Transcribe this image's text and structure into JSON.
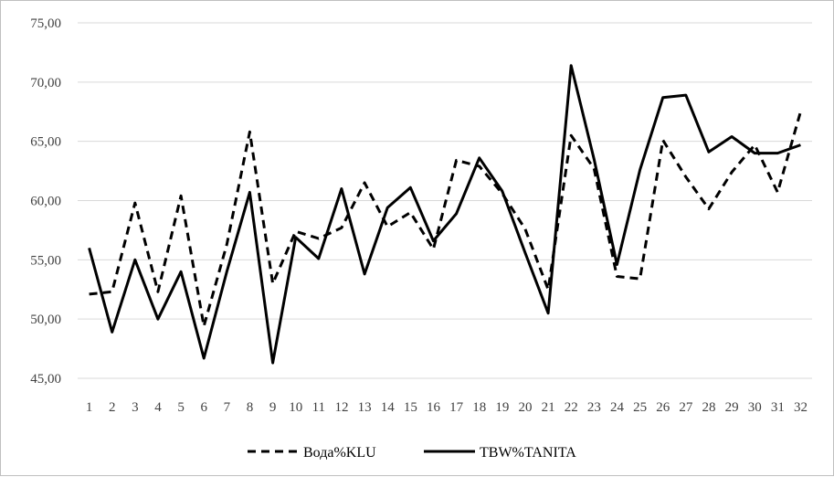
{
  "chart_data": {
    "type": "line",
    "title": "",
    "xlabel": "",
    "ylabel": "",
    "ylim": [
      45,
      75
    ],
    "y_ticks": [
      "45,00",
      "50,00",
      "55,00",
      "60,00",
      "65,00",
      "70,00",
      "75,00"
    ],
    "y_tick_values": [
      45,
      50,
      55,
      60,
      65,
      70,
      75
    ],
    "categories": [
      "1",
      "2",
      "3",
      "4",
      "5",
      "6",
      "7",
      "8",
      "9",
      "10",
      "11",
      "12",
      "13",
      "14",
      "15",
      "16",
      "17",
      "18",
      "19",
      "20",
      "21",
      "22",
      "23",
      "24",
      "25",
      "26",
      "27",
      "28",
      "29",
      "30",
      "31",
      "32"
    ],
    "grid": true,
    "legend_position": "bottom",
    "series": [
      {
        "name": "Вода%KLU",
        "style": "dashed",
        "color": "#000000",
        "values": [
          52.1,
          52.3,
          59.8,
          52.3,
          60.4,
          49.4,
          56.3,
          65.8,
          53.0,
          57.4,
          56.8,
          57.7,
          61.5,
          57.8,
          59.0,
          55.9,
          63.4,
          62.9,
          60.6,
          57.6,
          52.5,
          65.5,
          62.7,
          53.6,
          53.4,
          65.1,
          62.0,
          59.3,
          62.4,
          64.7,
          60.7,
          67.5
        ]
      },
      {
        "name": "TBW%TANITA",
        "style": "solid",
        "color": "#000000",
        "values": [
          56.0,
          48.9,
          55.0,
          50.0,
          54.0,
          46.7,
          54.0,
          60.7,
          46.3,
          56.9,
          55.1,
          61.0,
          53.8,
          59.4,
          61.1,
          56.6,
          58.9,
          63.6,
          60.8,
          55.6,
          50.5,
          71.4,
          63.5,
          54.6,
          62.6,
          68.7,
          68.9,
          64.1,
          65.4,
          64.0,
          64.0,
          64.7
        ]
      }
    ]
  }
}
